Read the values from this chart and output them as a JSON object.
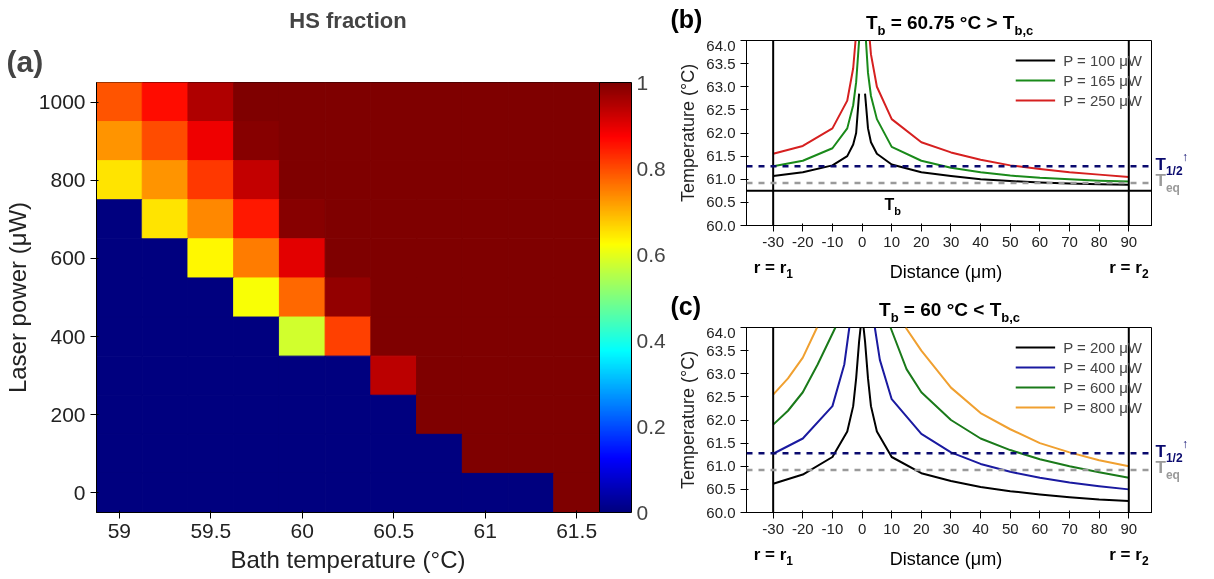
{
  "chart_data": [
    {
      "type": "heatmap",
      "title": "HS fraction",
      "xlabel": "Bath temperature (°C)",
      "ylabel": "Laser power (μW)",
      "annotations": [
        "(a)"
      ],
      "categories": [
        "59",
        null,
        "59.5",
        null,
        "60",
        null,
        "60.5",
        null,
        "61",
        null,
        "61.5"
      ],
      "y_categories": [
        "1000",
        null,
        "800",
        null,
        "600",
        null,
        "400",
        null,
        "200",
        null,
        "0"
      ],
      "clim": [
        0,
        1
      ],
      "cticks": [
        0,
        0.2,
        0.4,
        0.6,
        0.8,
        1
      ],
      "cells": [
        [
          0.79,
          0.86,
          0.95,
          1,
          1,
          1,
          1,
          1,
          1,
          1,
          1
        ],
        [
          0.73,
          0.8,
          0.89,
          0.99,
          1,
          1,
          1,
          1,
          1,
          1,
          1
        ],
        [
          0.65,
          0.73,
          0.82,
          0.93,
          1,
          1,
          1,
          1,
          1,
          1,
          1
        ],
        [
          0,
          0.65,
          0.74,
          0.85,
          0.99,
          1,
          1,
          1,
          1,
          1,
          1
        ],
        [
          0,
          0,
          0.63,
          0.75,
          0.9,
          1,
          1,
          1,
          1,
          1,
          1
        ],
        [
          0,
          0,
          0,
          0.62,
          0.77,
          0.98,
          1,
          1,
          1,
          1,
          1
        ],
        [
          0,
          0,
          0,
          0,
          0.58,
          0.81,
          1,
          1,
          1,
          1,
          1
        ],
        [
          0,
          0,
          0,
          0,
          0,
          0,
          0.94,
          1,
          1,
          1,
          1
        ],
        [
          0,
          0,
          0,
          0,
          0,
          0,
          0,
          1,
          1,
          1,
          1
        ],
        [
          0,
          0,
          0,
          0,
          0,
          0,
          0,
          0,
          1,
          1,
          1
        ],
        [
          0,
          0,
          0,
          0,
          0,
          0,
          0,
          0,
          0,
          0,
          1
        ]
      ]
    },
    {
      "type": "line",
      "title": "T$_{b}$ = 60.75 °C > T$_{b,c}$",
      "xlabel": "Distance (μm)",
      "ylabel": "Temperature (°C)",
      "annotations": [
        "(b)"
      ],
      "xlim": [
        -39,
        98
      ],
      "xticks": [
        -30,
        -20,
        -10,
        0,
        10,
        20,
        30,
        40,
        50,
        60,
        70,
        80,
        90
      ],
      "ylim": [
        60,
        64
      ],
      "yticks": [
        {
          "value": 60,
          "label": "60.0"
        },
        60.5,
        {
          "value": 61,
          "label": "61.0"
        },
        61.5,
        {
          "value": 62,
          "label": "62.0"
        },
        62.5,
        {
          "value": 63,
          "label": "63.0"
        },
        63.5,
        {
          "value": 64,
          "label": "64.0"
        }
      ],
      "legend": "top right",
      "line_style": "solid",
      "series": [
        {
          "name": "P = 100 μW",
          "color": "#000000",
          "x": [
            -30,
            -20,
            -10,
            -5,
            -3,
            -2,
            -1,
            0,
            1,
            2,
            3,
            5,
            10,
            20,
            30,
            40,
            50,
            60,
            70,
            80,
            90
          ],
          "values": [
            61.07,
            61.15,
            61.3,
            61.5,
            61.75,
            62.0,
            62.85,
            null,
            62.85,
            62.1,
            61.8,
            61.55,
            61.32,
            61.15,
            61.07,
            61.0,
            60.96,
            60.93,
            60.91,
            60.89,
            60.88
          ]
        },
        {
          "name": "P = 165 μW",
          "color": "#1a8a1a",
          "x": [
            -30,
            -20,
            -10,
            -5,
            -3,
            -2,
            -1,
            0.25,
            1.3,
            2,
            3,
            5,
            10,
            20,
            30,
            40,
            50,
            60,
            70,
            80,
            90
          ],
          "values": [
            61.28,
            61.4,
            61.67,
            62.1,
            62.6,
            63.1,
            64.0,
            null,
            64.0,
            63.3,
            62.8,
            62.3,
            61.7,
            61.4,
            61.25,
            61.15,
            61.08,
            61.03,
            61.0,
            60.97,
            60.95
          ]
        },
        {
          "name": "P = 250 μW",
          "color": "#d62020",
          "x": [
            -30,
            -20,
            -10,
            -5,
            -3,
            -2.2,
            0.2,
            2.6,
            3,
            5,
            10,
            20,
            30,
            40,
            50,
            60,
            70,
            80,
            90
          ],
          "values": [
            61.55,
            61.72,
            62.1,
            62.7,
            63.4,
            64.0,
            null,
            64.0,
            63.7,
            63.0,
            62.3,
            61.8,
            61.58,
            61.42,
            61.3,
            61.22,
            61.15,
            61.1,
            61.05
          ]
        }
      ],
      "ref_lines": [
        {
          "axis": "x",
          "value": -30,
          "label": "r = r$_{1}$",
          "color": "#000000",
          "line_style": "solid"
        },
        {
          "axis": "x",
          "value": 90,
          "label": "r = r$_{2}$",
          "color": "#000000",
          "line_style": "solid"
        },
        {
          "axis": "y",
          "value": 60.75,
          "label": "T$_{b}$",
          "color": "#000000",
          "line_style": "solid"
        },
        {
          "axis": "y",
          "value": 61.28,
          "label": "T$_{1/2}$$^{↑}$",
          "color": "#0a0a6e",
          "line_style": "dashed"
        },
        {
          "axis": "y",
          "value": 60.92,
          "label": "T$_{eq}$",
          "color": "#9a9a9a",
          "line_style": "dashed"
        }
      ]
    },
    {
      "type": "line",
      "title": "T$_{b}$ = 60 °C < T$_{b,c}$",
      "xlabel": "Distance (μm)",
      "ylabel": "Temperature (°C)",
      "annotations": [
        "(c)"
      ],
      "xlim": [
        -39,
        98
      ],
      "xticks": [
        -30,
        -20,
        -10,
        0,
        10,
        20,
        30,
        40,
        50,
        60,
        70,
        80,
        90
      ],
      "ylim": [
        60,
        64
      ],
      "yticks": [
        {
          "value": 60,
          "label": "60.0"
        },
        60.5,
        {
          "value": 61,
          "label": "61.0"
        },
        61.5,
        {
          "value": 62,
          "label": "62.0"
        },
        62.5,
        {
          "value": 63,
          "label": "63.0"
        },
        63.5,
        {
          "value": 64,
          "label": "64.0"
        }
      ],
      "legend": "top right",
      "line_style": "solid",
      "series": [
        {
          "name": "P = 200 μW",
          "color": "#000000",
          "x": [
            -30,
            -20,
            -10,
            -5,
            -3,
            -2,
            -1,
            -0.5,
            0,
            0.5,
            1,
            2,
            3,
            5,
            10,
            20,
            30,
            40,
            50,
            60,
            70,
            80,
            90
          ],
          "values": [
            60.62,
            60.82,
            61.2,
            61.75,
            62.3,
            62.9,
            63.7,
            64.0,
            null,
            64.0,
            63.7,
            62.9,
            62.3,
            61.75,
            61.2,
            60.85,
            60.68,
            60.55,
            60.46,
            60.39,
            60.33,
            60.28,
            60.25
          ]
        },
        {
          "name": "P = 400 μW",
          "color": "#1a1aa0",
          "x": [
            -30,
            -20,
            -10,
            -6,
            -4.3,
            0,
            4.3,
            6,
            10,
            20,
            30,
            40,
            50,
            60,
            70,
            80,
            90
          ],
          "values": [
            61.27,
            61.6,
            62.3,
            63.2,
            64.0,
            null,
            64.0,
            63.3,
            62.45,
            61.7,
            61.3,
            61.05,
            60.88,
            60.75,
            60.65,
            60.57,
            60.5
          ]
        },
        {
          "name": "P = 600 μW",
          "color": "#1a7a1a",
          "x": [
            -30,
            -25,
            -20,
            -15,
            -9,
            0,
            9.6,
            15,
            20,
            30,
            40,
            50,
            60,
            70,
            80,
            90
          ],
          "values": [
            61.9,
            62.2,
            62.6,
            63.2,
            64.0,
            null,
            64.0,
            63.1,
            62.6,
            62.0,
            61.6,
            61.35,
            61.15,
            61.0,
            60.87,
            60.75
          ]
        },
        {
          "name": "P = 800 μW",
          "color": "#f0a030",
          "x": [
            -30,
            -25,
            -20,
            -15.2,
            0,
            14.7,
            20,
            30,
            40,
            50,
            60,
            70,
            80,
            90
          ],
          "values": [
            62.55,
            62.9,
            63.35,
            64.0,
            null,
            64.0,
            63.5,
            62.7,
            62.15,
            61.8,
            61.5,
            61.3,
            61.13,
            61.0
          ]
        }
      ],
      "ref_lines": [
        {
          "axis": "x",
          "value": -30,
          "label": "r = r$_{1}$",
          "color": "#000000",
          "line_style": "solid"
        },
        {
          "axis": "x",
          "value": 90,
          "label": "r = r$_{2}$",
          "color": "#000000",
          "line_style": "solid"
        },
        {
          "axis": "y",
          "value": 61.28,
          "label": "T$_{1/2}$$^{↑}$",
          "color": "#0a0a6e",
          "line_style": "dashed"
        },
        {
          "axis": "y",
          "value": 60.92,
          "label": "T$_{eq}$",
          "color": "#9a9a9a",
          "line_style": "dashed"
        }
      ]
    }
  ]
}
